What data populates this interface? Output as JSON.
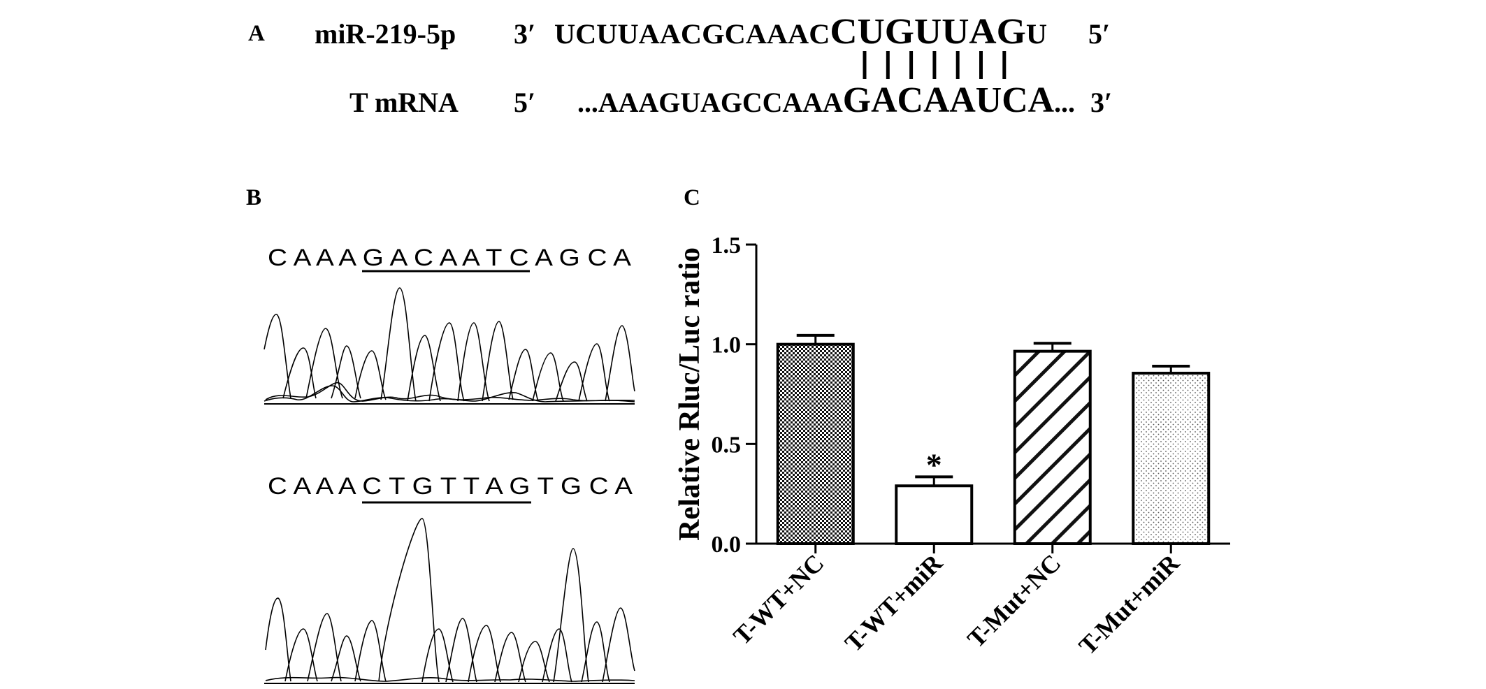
{
  "panel_a": {
    "label": "A",
    "mir_name": "miR-219-5p",
    "mir_5prime": "3′",
    "mir_seq_small": "UCUUAACGCAAAC",
    "mir_seq_large_1": "CUGUUAG",
    "mir_seq_small_2": "U",
    "mir_3prime": "5′",
    "mrna_name": "T mRNA",
    "mrna_5prime": "5′",
    "mrna_seq_small": "...AAAGUAGCCAAA",
    "mrna_seq_large": "GACAAUCA",
    "mrna_seq_tail": "...",
    "mrna_3prime": "3′",
    "pair_count": 7
  },
  "panel_b": {
    "label": "B",
    "wt_sequence": "C A A A G A C A A T C A G C A",
    "mut_sequence": "C A A A C T G T T A G T G C A"
  },
  "panel_c": {
    "label": "C"
  },
  "chart_data": {
    "type": "bar",
    "categories": [
      "T-WT+NC",
      "T-WT+miR",
      "T-Mut+NC",
      "T-Mut+miR"
    ],
    "values": [
      1.0,
      0.29,
      0.965,
      0.855
    ],
    "errors": [
      0.045,
      0.045,
      0.04,
      0.035
    ],
    "patterns": [
      "checker",
      "none",
      "diagonal",
      "dots"
    ],
    "annotations": [
      {
        "category": "T-WT+miR",
        "text": "*"
      }
    ],
    "xlabel": "",
    "ylabel": "Relative Rluc/Luc ratio",
    "ylim": [
      0,
      1.5
    ],
    "yticks": [
      "0.0",
      "0.5",
      "1.0",
      "1.5"
    ],
    "ytick_values": [
      0,
      0.5,
      1.0,
      1.5
    ],
    "grid": false,
    "colors": {
      "bar_stroke": "#000000",
      "bar_fill": "#ffffff"
    }
  }
}
